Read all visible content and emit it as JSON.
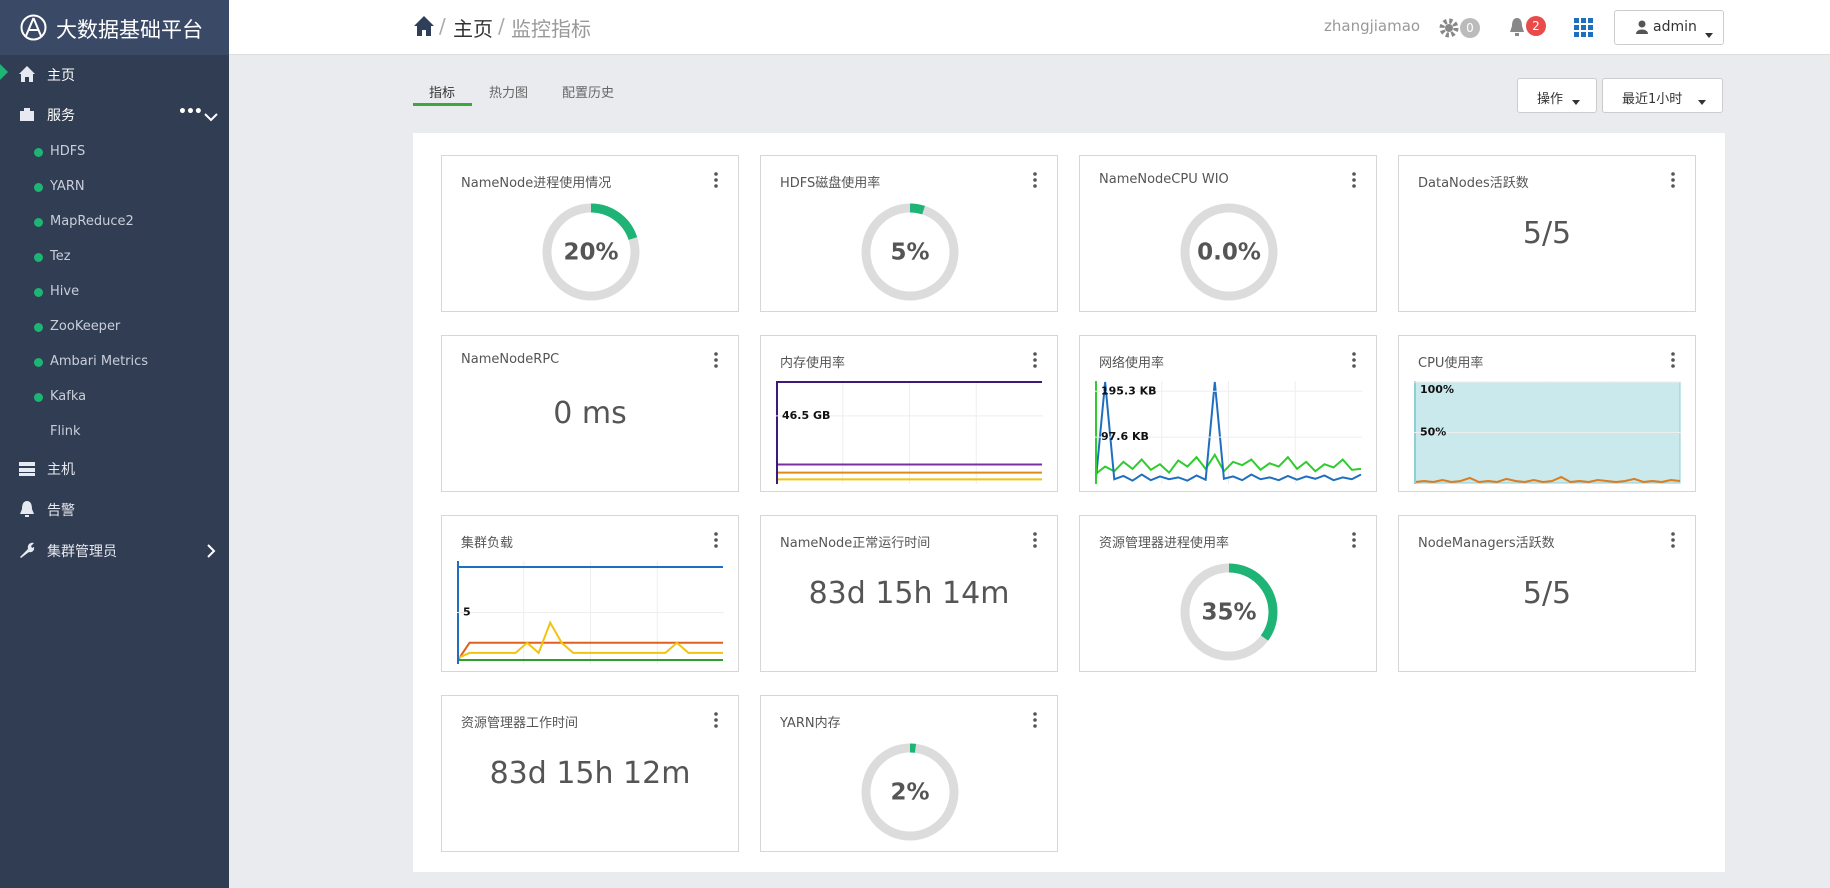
{
  "sidebar": {
    "brand": "大数据基础平台",
    "nav_top": [
      {
        "label": "主页"
      },
      {
        "label": "服务"
      }
    ],
    "services": [
      {
        "label": "HDFS",
        "status": "ok"
      },
      {
        "label": "YARN",
        "status": "ok"
      },
      {
        "label": "MapReduce2",
        "status": "ok"
      },
      {
        "label": "Tez",
        "status": "ok"
      },
      {
        "label": "Hive",
        "status": "ok"
      },
      {
        "label": "ZooKeeper",
        "status": "ok"
      },
      {
        "label": "Ambari Metrics",
        "status": "ok"
      },
      {
        "label": "Kafka",
        "status": "ok"
      },
      {
        "label": "Flink",
        "status": "none"
      }
    ],
    "nav_bottom": [
      {
        "label": "主机"
      },
      {
        "label": "告警"
      },
      {
        "label": "集群管理员"
      }
    ]
  },
  "header": {
    "breadcrumb": [
      "主页",
      "监控指标"
    ],
    "user": "zhangjiamao",
    "settings_count": 0,
    "alerts_count": 2,
    "account": "admin"
  },
  "tabs": [
    "指标",
    "热力图",
    "配置历史"
  ],
  "buttons": [
    "操作",
    "最近1小时"
  ],
  "widgets": [
    {
      "title": "NameNode进程使用情况",
      "kind": "gauge",
      "value": 20,
      "value_label": "20%"
    },
    {
      "title": "HDFS磁盘使用率",
      "kind": "gauge",
      "value": 5,
      "value_label": "5%"
    },
    {
      "title": "NameNodeCPU WIO",
      "kind": "gauge",
      "value": 0,
      "value_label": "0.0%"
    },
    {
      "title": "DataNodes活跃数",
      "kind": "text",
      "text": "5/5"
    },
    {
      "title": "NameNodeRPC",
      "kind": "text",
      "text": "0 ms"
    },
    {
      "title": "内存使用率",
      "kind": "chart",
      "ylim": [
        0,
        70
      ],
      "yticks": [
        {
          "value": 46.5,
          "label": "46.5 GB"
        }
      ],
      "series": [
        {
          "color": "#3d1a78",
          "values": [
            70,
            70,
            70,
            70,
            70,
            70,
            70,
            70,
            70,
            70,
            70,
            70
          ]
        },
        {
          "color": "#7b2fa0",
          "values": [
            12.8,
            12.8,
            12.8,
            12.8,
            12.8,
            12.8,
            12.8,
            12.8,
            12.8,
            12.8,
            12.8,
            12.8
          ]
        },
        {
          "color": "#e08a1e",
          "values": [
            7.2,
            7.2,
            7.2,
            7.2,
            7.2,
            7.2,
            7.2,
            7.2,
            7.2,
            7.2,
            7.2,
            7.2
          ]
        },
        {
          "color": "#f1c40f",
          "values": [
            2.5,
            2.5,
            2.5,
            2.5,
            2.5,
            2.5,
            2.5,
            2.5,
            2.5,
            2.5,
            2.5,
            2.5
          ]
        }
      ]
    },
    {
      "title": "网络使用率",
      "kind": "chart",
      "ylim": [
        0,
        215
      ],
      "yticks": [
        {
          "value": 195.3,
          "label": "195.3 KB"
        },
        {
          "value": 97.6,
          "label": "97.6 KB"
        }
      ],
      "series": [
        {
          "color": "#2ecc2e",
          "values": [
            20,
            35,
            25,
            45,
            30,
            50,
            28,
            40,
            22,
            48,
            35,
            55,
            30,
            60,
            25,
            45,
            38,
            50,
            28,
            42,
            35,
            55,
            30,
            45,
            25,
            40,
            33,
            50,
            28,
            30
          ]
        },
        {
          "color": "#1f6fc0",
          "values": [
            10,
            215,
            8,
            15,
            5,
            18,
            6,
            14,
            8,
            12,
            5,
            16,
            7,
            215,
            9,
            14,
            6,
            18,
            8,
            12,
            6,
            15,
            7,
            14,
            9,
            16,
            6,
            12,
            8,
            18
          ]
        }
      ]
    },
    {
      "title": "CPU使用率",
      "kind": "chart",
      "ylim": [
        0,
        100
      ],
      "yticks": [
        {
          "value": 100,
          "label": "100%"
        },
        {
          "value": 50,
          "label": "50%"
        }
      ],
      "series": [
        {
          "color": "#8ccfd4",
          "fill": "#c9e9ec",
          "values": [
            100,
            100,
            100,
            100,
            100,
            100,
            100,
            100,
            100,
            100,
            100,
            100,
            100,
            100,
            100,
            100,
            100,
            100,
            100,
            100,
            100,
            100,
            100,
            100,
            100,
            100,
            100,
            100,
            100,
            100
          ]
        },
        {
          "color": "#e07b1e",
          "values": [
            1,
            2,
            1,
            3,
            1,
            2,
            5,
            1,
            2,
            1,
            4,
            2,
            1,
            3,
            1,
            2,
            6,
            1,
            2,
            1,
            3,
            2,
            1,
            2,
            4,
            1,
            2,
            1,
            3,
            2
          ]
        }
      ]
    },
    {
      "title": "集群负载",
      "kind": "chart",
      "ylim": [
        0,
        10
      ],
      "yticks": [
        5
      ],
      "series": [
        {
          "color": "#1f6fc0",
          "values": [
            9.5,
            9.5,
            9.5,
            9.5,
            9.5,
            9.5,
            9.5,
            9.5,
            9.5,
            9.5,
            9.5,
            9.5,
            9.5,
            9.5,
            9.5,
            9.5,
            9.5,
            9.5,
            9.5,
            9.5,
            9.5,
            9.5,
            9.5,
            9.5
          ]
        },
        {
          "color": "#e0601e",
          "values": [
            0.3,
            2,
            2,
            2,
            2,
            2,
            2,
            2,
            2,
            2,
            2,
            2,
            2,
            2,
            2,
            2,
            2,
            2,
            2,
            2,
            2,
            2,
            2,
            2
          ]
        },
        {
          "color": "#f1c40f",
          "values": [
            0.5,
            1,
            1,
            1,
            1,
            1,
            2,
            1,
            4,
            2,
            1,
            1,
            1,
            1,
            1,
            1,
            1,
            1,
            1,
            2,
            1,
            1,
            1,
            1
          ]
        },
        {
          "color": "#2ca02c",
          "values": [
            0.3,
            0.3,
            0.3,
            0.3,
            0.3,
            0.3,
            0.3,
            0.3,
            0.3,
            0.3,
            0.3,
            0.3,
            0.3,
            0.3,
            0.3,
            0.3,
            0.3,
            0.3,
            0.3,
            0.3,
            0.3,
            0.3,
            0.3,
            0.3
          ]
        }
      ]
    },
    {
      "title": "NameNode正常运行时间",
      "kind": "text",
      "text": "83d 15h 14m"
    },
    {
      "title": "资源管理器进程使用率",
      "kind": "gauge",
      "value": 35,
      "value_label": "35%"
    },
    {
      "title": "NodeManagers活跃数",
      "kind": "text",
      "text": "5/5"
    },
    {
      "title": "资源管理器工作时间",
      "kind": "text",
      "text": "83d 15h 12m"
    },
    {
      "title": "YARN内存",
      "kind": "gauge",
      "value": 2,
      "value_label": "2%"
    }
  ]
}
